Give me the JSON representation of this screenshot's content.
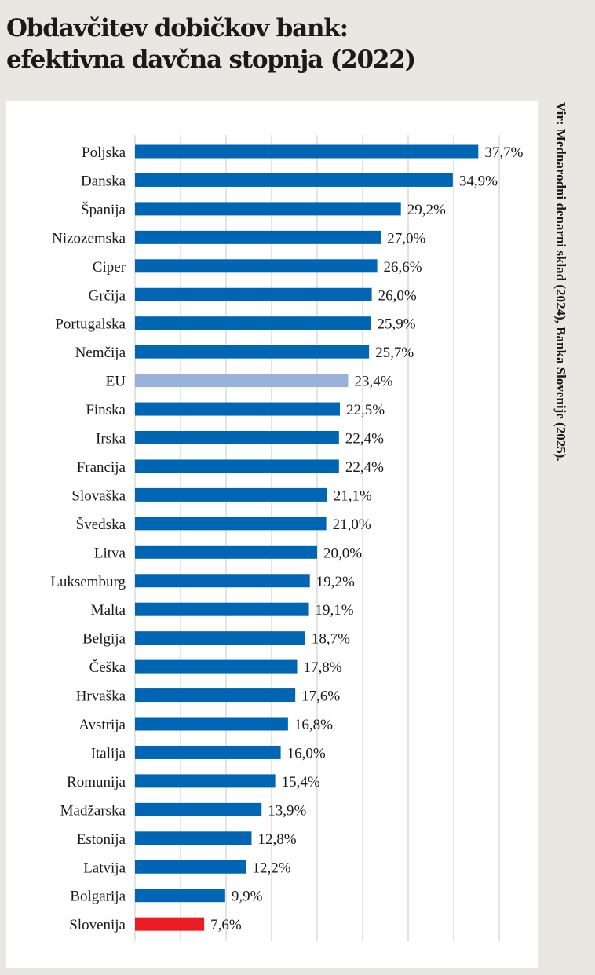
{
  "title_lines": [
    "Obdavčitev dobičkov bank:",
    "efektivna davčna stopnja (2022)"
  ],
  "source": "Vir: Mednarodni denarni sklad (2024), Banka Slovenije (2025).",
  "chart_data": {
    "type": "bar",
    "orientation": "horizontal",
    "categories": [
      "Poljska",
      "Danska",
      "Španija",
      "Nizozemska",
      "Ciper",
      "Grčija",
      "Portugalska",
      "Nemčija",
      "EU",
      "Finska",
      "Irska",
      "Francija",
      "Slovaška",
      "Švedska",
      "Litva",
      "Luksemburg",
      "Malta",
      "Belgija",
      "Češka",
      "Hrvaška",
      "Avstrija",
      "Italija",
      "Romunija",
      "Madžarska",
      "Estonija",
      "Latvija",
      "Bolgarija",
      "Slovenija"
    ],
    "values": [
      37.7,
      34.9,
      29.2,
      27.0,
      26.6,
      26.0,
      25.9,
      25.7,
      23.4,
      22.5,
      22.4,
      22.4,
      21.1,
      21.0,
      20.0,
      19.2,
      19.1,
      18.7,
      17.8,
      17.6,
      16.8,
      16.0,
      15.4,
      13.9,
      12.8,
      12.2,
      9.9,
      7.6
    ],
    "data_labels": [
      "37,7%",
      "34,9%",
      "29,2%",
      "27,0%",
      "26,6%",
      "26,0%",
      "25,9%",
      "25,7%",
      "23,4%",
      "22,5%",
      "22,4%",
      "22,4%",
      "21,1%",
      "21,0%",
      "20,0%",
      "19,2%",
      "19,1%",
      "18,7%",
      "17,8%",
      "17,6%",
      "16,8%",
      "16,0%",
      "15,4%",
      "13,9%",
      "12,8%",
      "12,2%",
      "9,9%",
      "7,6%"
    ],
    "xlim": [
      0,
      40
    ],
    "grid_step": 5,
    "grid": true,
    "x_tick_labels_shown": false,
    "colors": {
      "default": "#0066b3",
      "EU": "#98b2da",
      "Slovenija": "#ec1c24",
      "grid": "#c8c8c8"
    }
  }
}
